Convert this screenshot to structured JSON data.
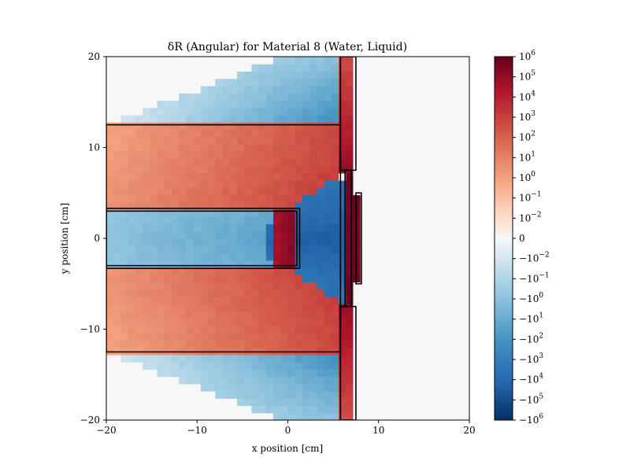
{
  "chart_data": {
    "type": "heatmap",
    "title": "δR (Angular) for Material 8 (Water, Liquid)",
    "xlabel": "x position [cm]",
    "ylabel": "y position [cm]",
    "xlim": [
      -20,
      20
    ],
    "ylim": [
      -20,
      20
    ],
    "grid": false,
    "x_ticks": [
      "−20",
      "−10",
      "0",
      "10",
      "20"
    ],
    "x_tick_values": [
      -20,
      -10,
      0,
      10,
      20
    ],
    "y_ticks": [
      "−20",
      "−10",
      "0",
      "10",
      "20"
    ],
    "y_tick_values": [
      -20,
      -10,
      0,
      10,
      20
    ],
    "colormap": "RdBu_r (symlog)",
    "colorbar": {
      "scale": "symlog",
      "range": [
        "−10^6",
        "10^6"
      ],
      "ticks": [
        {
          "base": "10",
          "exp": "6"
        },
        {
          "base": "10",
          "exp": "5"
        },
        {
          "base": "10",
          "exp": "4"
        },
        {
          "base": "10",
          "exp": "3"
        },
        {
          "base": "10",
          "exp": "2"
        },
        {
          "base": "10",
          "exp": "1"
        },
        {
          "base": "10",
          "exp": "0"
        },
        {
          "base": "10",
          "exp": "−1"
        },
        {
          "base": "10",
          "exp": "−2"
        },
        {
          "base": "0",
          "exp": ""
        },
        {
          "base": "−10",
          "exp": "−2"
        },
        {
          "base": "−10",
          "exp": "−1"
        },
        {
          "base": "−10",
          "exp": "0"
        },
        {
          "base": "−10",
          "exp": "1"
        },
        {
          "base": "−10",
          "exp": "2"
        },
        {
          "base": "−10",
          "exp": "3"
        },
        {
          "base": "−10",
          "exp": "4"
        },
        {
          "base": "−10",
          "exp": "5"
        },
        {
          "base": "−10",
          "exp": "6"
        }
      ]
    },
    "cell_size_cm": 0.8,
    "geometry_outlines_cm": [
      {
        "x": [
          -20,
          5.8
        ],
        "y": [
          -12.5,
          12.5
        ]
      },
      {
        "x": [
          -20,
          1.3
        ],
        "y": [
          -3.3,
          3.3
        ]
      },
      {
        "x": [
          -20,
          1.0
        ],
        "y": [
          -3.0,
          3.0
        ]
      },
      {
        "x": [
          5.8,
          7.5
        ],
        "y": [
          7.5,
          20
        ]
      },
      {
        "x": [
          5.8,
          7.5
        ],
        "y": [
          -20,
          -7.5
        ]
      },
      {
        "x": [
          6.3,
          7.0
        ],
        "y": [
          -7.5,
          7.5
        ]
      },
      {
        "x": [
          7.5,
          8.1
        ],
        "y": [
          -5.0,
          5.0
        ]
      }
    ],
    "value_regions": [
      {
        "region": "air_background",
        "value_approx": "≈0"
      },
      {
        "region": "upper_lower_wedge",
        "value_approx": "−10^−1 to −10^3"
      },
      {
        "region": "body_block",
        "value_approx": "10^1 to 10^3"
      },
      {
        "region": "inner_slab",
        "value_approx": "−10^2 to −10^3"
      },
      {
        "region": "inner_slab_tip",
        "value_approx": "10^4 to 10^5"
      },
      {
        "region": "central_cone",
        "value_approx": "−10^4 to −10^5"
      },
      {
        "region": "vertical_plates",
        "value_approx": "10^2 to 10^6"
      }
    ]
  }
}
